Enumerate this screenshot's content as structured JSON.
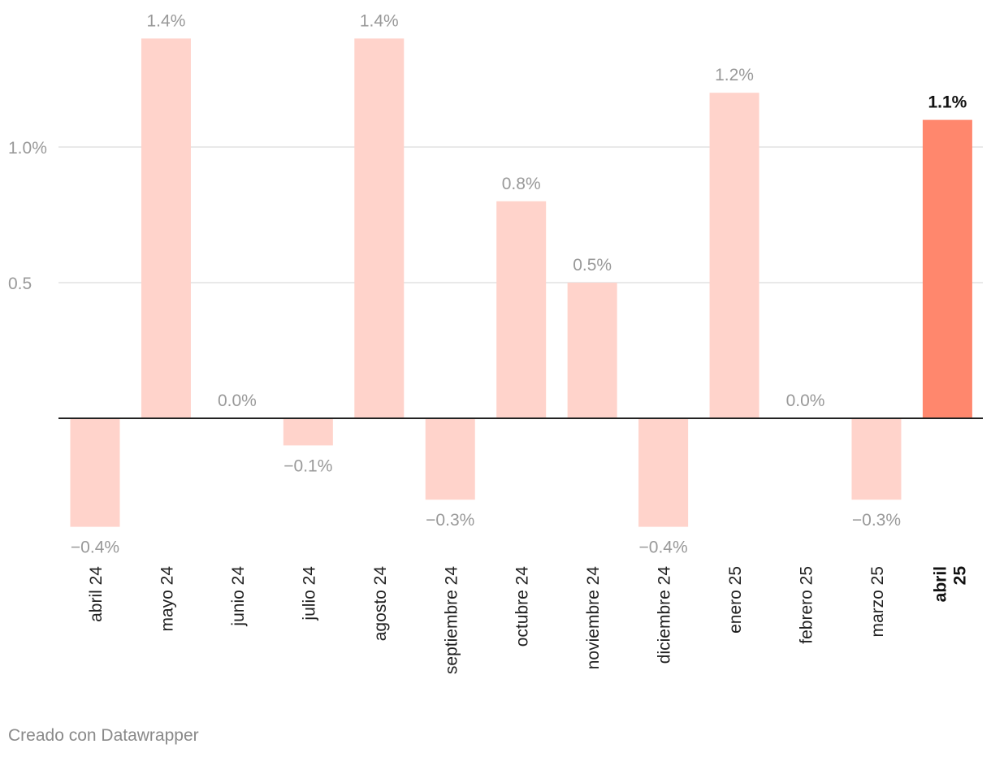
{
  "chart_data": {
    "type": "bar",
    "categories": [
      "abril 24",
      "mayo 24",
      "junio 24",
      "julio 24",
      "agosto 24",
      "septiembre 24",
      "octubre 24",
      "noviembre 24",
      "diciembre 24",
      "enero 25",
      "febrero 25",
      "marzo 25",
      "abril 25"
    ],
    "values": [
      -0.4,
      1.4,
      0.0,
      -0.1,
      1.4,
      -0.3,
      0.8,
      0.5,
      -0.4,
      1.2,
      0.0,
      -0.3,
      1.1
    ],
    "value_labels": [
      "−0.4%",
      "1.4%",
      "0.0%",
      "−0.1%",
      "1.4%",
      "−0.3%",
      "0.8%",
      "0.5%",
      "−0.4%",
      "1.2%",
      "0.0%",
      "−0.3%",
      "1.1%"
    ],
    "highlight_index": 12,
    "y_ticks": [
      {
        "value": 1.0,
        "label": "1.0%"
      },
      {
        "value": 0.5,
        "label": "0.5"
      }
    ],
    "ylim": [
      -0.4,
      1.4
    ],
    "grid": true,
    "colors": {
      "bar": "#ffd3cb",
      "highlight": "#ff876d",
      "grid": "#e2e2e2",
      "baseline": "#222222",
      "label": "#999999",
      "highlight_label": "#111111"
    }
  },
  "footer": {
    "credit": "Creado con Datawrapper"
  }
}
